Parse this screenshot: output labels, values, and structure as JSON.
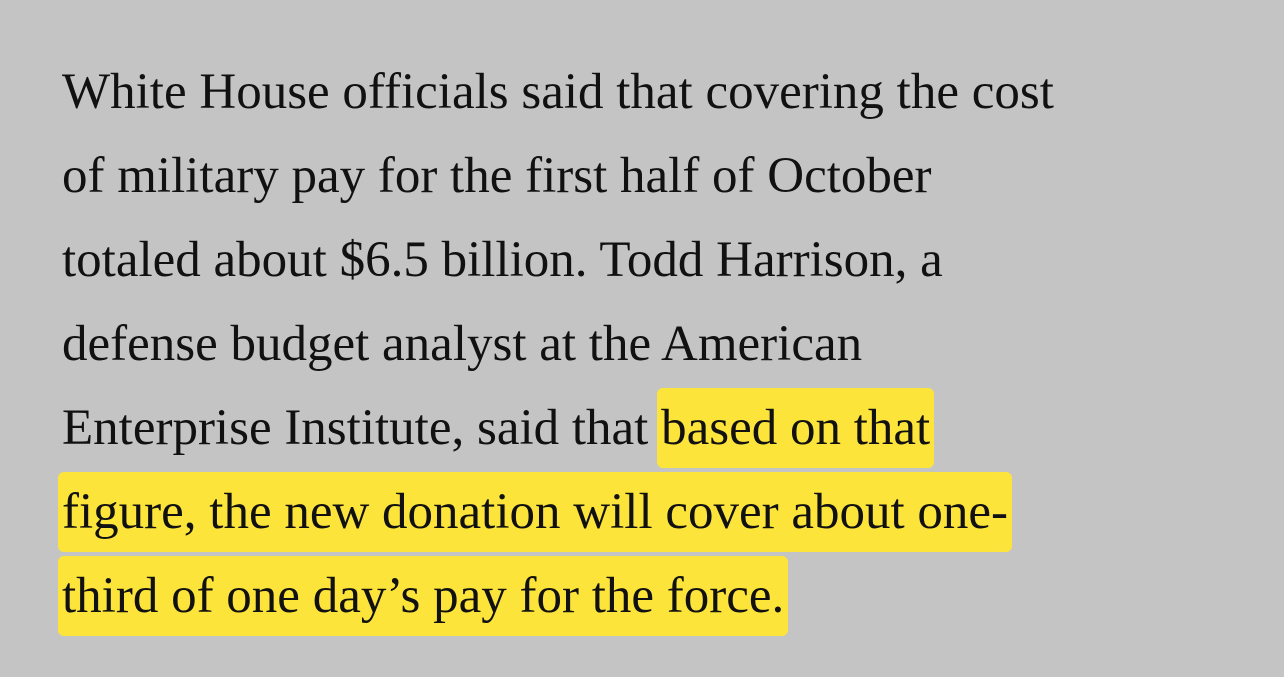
{
  "paragraph": {
    "lines": [
      [
        {
          "text": "White House officials said that covering the cost",
          "highlighted": false
        }
      ],
      [
        {
          "text": "of military pay for the first half of October",
          "highlighted": false
        }
      ],
      [
        {
          "text": "totaled about $6.5 billion. Todd Harrison, a",
          "highlighted": false
        }
      ],
      [
        {
          "text": "defense budget analyst at the American",
          "highlighted": false
        }
      ],
      [
        {
          "text": "Enterprise Institute, said that ",
          "highlighted": false
        },
        {
          "text": "based on that",
          "highlighted": true
        }
      ],
      [
        {
          "text": "figure, the new donation will cover about one-",
          "highlighted": true
        }
      ],
      [
        {
          "text": "third of one day’s pay for the force.",
          "highlighted": true
        }
      ]
    ]
  }
}
